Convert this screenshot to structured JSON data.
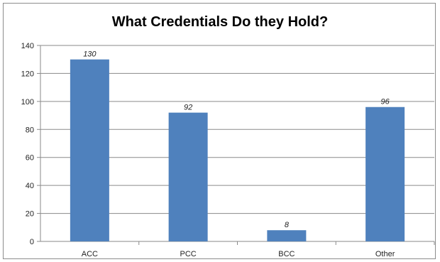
{
  "chart_data": {
    "type": "bar",
    "title": "What Credentials Do they Hold?",
    "categories": [
      "ACC",
      "PCC",
      "BCC",
      "Other"
    ],
    "values": [
      130,
      92,
      8,
      96
    ],
    "data_labels": [
      "130",
      "92",
      "8",
      "96"
    ],
    "y_ticks": [
      "0",
      "20",
      "40",
      "60",
      "80",
      "100",
      "120",
      "140"
    ],
    "ylim": [
      0,
      140
    ],
    "xlabel": "",
    "ylabel": "",
    "grid": true,
    "legend": "none",
    "bar_color": "#4f81bd"
  }
}
